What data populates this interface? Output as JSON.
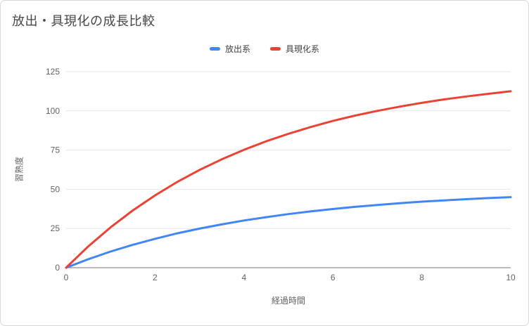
{
  "title": "放出・具現化の成長比較",
  "legend": {
    "items": [
      {
        "label": "放出系",
        "color": "#4285f4"
      },
      {
        "label": "具現化系",
        "color": "#ea4335"
      }
    ]
  },
  "chart_data": {
    "type": "line",
    "title": "放出・具現化の成長比較",
    "xlabel": "経過時間",
    "ylabel": "習熟度",
    "xlim": [
      0,
      10
    ],
    "ylim": [
      0,
      125
    ],
    "x_ticks": [
      0,
      2,
      4,
      6,
      8,
      10
    ],
    "y_ticks": [
      0,
      25,
      50,
      75,
      100,
      125
    ],
    "grid": "horizontal",
    "legend_position": "top",
    "x": [
      0,
      0.5,
      1,
      1.5,
      2,
      2.5,
      3,
      3.5,
      4,
      4.5,
      5,
      5.5,
      6,
      6.5,
      7,
      7.5,
      8,
      8.5,
      9,
      9.5,
      10
    ],
    "series": [
      {
        "name": "放出系",
        "color": "#4285f4",
        "values": [
          0,
          5.4,
          10.3,
          14.6,
          18.4,
          21.9,
          24.9,
          27.6,
          30.1,
          32.2,
          34.2,
          35.9,
          37.4,
          38.8,
          40.0,
          41.1,
          42.1,
          42.9,
          43.7,
          44.4,
          45.0
        ]
      },
      {
        "name": "具現化系",
        "color": "#ea4335",
        "values": [
          0,
          13.6,
          25.7,
          36.5,
          46.1,
          54.7,
          62.3,
          69.1,
          75.2,
          80.6,
          85.4,
          89.7,
          93.6,
          97.0,
          100.0,
          102.7,
          105.1,
          107.3,
          109.2,
          110.9,
          112.5
        ]
      }
    ]
  },
  "colors": {
    "gridline": "#e6e6e6",
    "axis_line": "#757575",
    "tick_label": "#616161",
    "title_text": "#474747",
    "card_border": "#d9d9d9"
  }
}
